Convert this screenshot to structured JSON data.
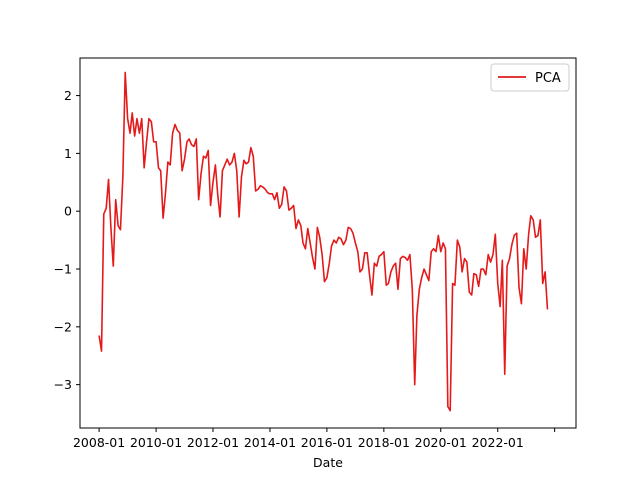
{
  "chart_data": {
    "type": "line",
    "xlabel": "Date",
    "ylabel": "",
    "xlim": [
      "2007-05-01",
      "2024-10-01"
    ],
    "ylim": [
      -3.75,
      2.65
    ],
    "xticks": [
      {
        "date": "2008-01-01",
        "label": "2008-01"
      },
      {
        "date": "2010-01-01",
        "label": "2010-01"
      },
      {
        "date": "2012-01-01",
        "label": "2012-01"
      },
      {
        "date": "2014-01-01",
        "label": "2014-01"
      },
      {
        "date": "2016-01-01",
        "label": "2016-01"
      },
      {
        "date": "2018-01-01",
        "label": "2018-01"
      },
      {
        "date": "2020-01-01",
        "label": "2020-01"
      },
      {
        "date": "2022-01-01",
        "label": "2022-01"
      },
      {
        "date": "2024-01-01",
        "label": ""
      }
    ],
    "yticks": [
      -3,
      -2,
      -1,
      0,
      1,
      2
    ],
    "grid": false,
    "legend": {
      "position": "top-right"
    },
    "colors": {
      "series": "#e41a1a",
      "axes": "#000000"
    },
    "series": [
      {
        "name": "PCA",
        "x": [
          "2008-01-01",
          "2008-02-01",
          "2008-03-01",
          "2008-04-01",
          "2008-05-01",
          "2008-06-01",
          "2008-07-01",
          "2008-08-01",
          "2008-09-01",
          "2008-10-01",
          "2008-11-01",
          "2008-12-01",
          "2009-01-01",
          "2009-02-01",
          "2009-03-01",
          "2009-04-01",
          "2009-05-01",
          "2009-06-01",
          "2009-07-01",
          "2009-08-01",
          "2009-09-01",
          "2009-10-01",
          "2009-11-01",
          "2009-12-01",
          "2010-01-01",
          "2010-02-01",
          "2010-03-01",
          "2010-04-01",
          "2010-05-01",
          "2010-06-01",
          "2010-07-01",
          "2010-08-01",
          "2010-09-01",
          "2010-10-01",
          "2010-11-01",
          "2010-12-01",
          "2011-01-01",
          "2011-02-01",
          "2011-03-01",
          "2011-04-01",
          "2011-05-01",
          "2011-06-01",
          "2011-07-01",
          "2011-08-01",
          "2011-09-01",
          "2011-10-01",
          "2011-11-01",
          "2011-12-01",
          "2012-01-01",
          "2012-02-01",
          "2012-03-01",
          "2012-04-01",
          "2012-05-01",
          "2012-06-01",
          "2012-07-01",
          "2012-08-01",
          "2012-09-01",
          "2012-10-01",
          "2012-11-01",
          "2012-12-01",
          "2013-01-01",
          "2013-02-01",
          "2013-03-01",
          "2013-04-01",
          "2013-05-01",
          "2013-06-01",
          "2013-07-01",
          "2013-08-01",
          "2013-09-01",
          "2013-10-01",
          "2013-11-01",
          "2013-12-01",
          "2014-01-01",
          "2014-02-01",
          "2014-03-01",
          "2014-04-01",
          "2014-05-01",
          "2014-06-01",
          "2014-07-01",
          "2014-08-01",
          "2014-09-01",
          "2014-10-01",
          "2014-11-01",
          "2014-12-01",
          "2015-01-01",
          "2015-02-01",
          "2015-03-01",
          "2015-04-01",
          "2015-05-01",
          "2015-06-01",
          "2015-07-01",
          "2015-08-01",
          "2015-09-01",
          "2015-10-01",
          "2015-11-01",
          "2015-12-01",
          "2016-01-01",
          "2016-02-01",
          "2016-03-01",
          "2016-04-01",
          "2016-05-01",
          "2016-06-01",
          "2016-07-01",
          "2016-08-01",
          "2016-09-01",
          "2016-10-01",
          "2016-11-01",
          "2016-12-01",
          "2017-01-01",
          "2017-02-01",
          "2017-03-01",
          "2017-04-01",
          "2017-05-01",
          "2017-06-01",
          "2017-07-01",
          "2017-08-01",
          "2017-09-01",
          "2017-10-01",
          "2017-11-01",
          "2017-12-01",
          "2018-01-01",
          "2018-02-01",
          "2018-03-01",
          "2018-04-01",
          "2018-05-01",
          "2018-06-01",
          "2018-07-01",
          "2018-08-01",
          "2018-09-01",
          "2018-10-01",
          "2018-11-01",
          "2018-12-01",
          "2019-01-01",
          "2019-02-01",
          "2019-03-01",
          "2019-04-01",
          "2019-05-01",
          "2019-06-01",
          "2019-07-01",
          "2019-08-01",
          "2019-09-01",
          "2019-10-01",
          "2019-11-01",
          "2019-12-01",
          "2020-01-01",
          "2020-02-01",
          "2020-03-01",
          "2020-04-01",
          "2020-05-01",
          "2020-06-01",
          "2020-07-01",
          "2020-08-01",
          "2020-09-01",
          "2020-10-01",
          "2020-11-01",
          "2020-12-01",
          "2021-01-01",
          "2021-02-01",
          "2021-03-01",
          "2021-04-01",
          "2021-05-01",
          "2021-06-01",
          "2021-07-01",
          "2021-08-01",
          "2021-09-01",
          "2021-10-01",
          "2021-11-01",
          "2021-12-01",
          "2022-01-01",
          "2022-02-01",
          "2022-03-01",
          "2022-04-01",
          "2022-05-01",
          "2022-06-01",
          "2022-07-01",
          "2022-08-01",
          "2022-09-01",
          "2022-10-01",
          "2022-11-01",
          "2022-12-01",
          "2023-01-01",
          "2023-02-01",
          "2023-03-01",
          "2023-04-01",
          "2023-05-01",
          "2023-06-01",
          "2023-07-01",
          "2023-08-01",
          "2023-09-01",
          "2023-10-01"
        ],
        "values": [
          -2.15,
          -2.42,
          -0.05,
          0.05,
          0.55,
          -0.3,
          -0.95,
          0.2,
          -0.25,
          -0.32,
          0.6,
          2.4,
          1.6,
          1.35,
          1.7,
          1.3,
          1.6,
          1.35,
          1.6,
          0.75,
          1.2,
          1.6,
          1.55,
          1.2,
          1.2,
          0.75,
          0.7,
          -0.12,
          0.3,
          0.85,
          0.8,
          1.35,
          1.5,
          1.4,
          1.35,
          0.7,
          0.9,
          1.2,
          1.25,
          1.15,
          1.12,
          1.25,
          0.2,
          0.65,
          0.95,
          0.92,
          1.05,
          0.1,
          0.5,
          0.8,
          0.3,
          -0.1,
          0.7,
          0.8,
          0.9,
          0.8,
          0.85,
          1.0,
          0.7,
          -0.1,
          0.6,
          0.88,
          0.82,
          0.85,
          1.1,
          0.95,
          0.35,
          0.38,
          0.44,
          0.42,
          0.38,
          0.32,
          0.3,
          0.3,
          0.2,
          0.32,
          0.05,
          0.12,
          0.42,
          0.35,
          0.02,
          0.05,
          0.1,
          -0.3,
          -0.15,
          -0.25,
          -0.55,
          -0.65,
          -0.3,
          -0.55,
          -0.8,
          -1.0,
          -0.28,
          -0.45,
          -0.75,
          -1.22,
          -1.15,
          -0.9,
          -0.6,
          -0.5,
          -0.55,
          -0.45,
          -0.48,
          -0.58,
          -0.5,
          -0.28,
          -0.3,
          -0.38,
          -0.55,
          -0.7,
          -1.05,
          -1.0,
          -0.72,
          -0.72,
          -1.1,
          -1.45,
          -0.9,
          -0.95,
          -0.78,
          -0.75,
          -0.7,
          -1.28,
          -1.25,
          -1.05,
          -0.95,
          -0.9,
          -1.35,
          -0.82,
          -0.78,
          -0.8,
          -0.85,
          -0.75,
          -1.35,
          -3.0,
          -1.8,
          -1.35,
          -1.15,
          -1.0,
          -1.1,
          -1.2,
          -0.7,
          -0.65,
          -0.7,
          -0.42,
          -0.7,
          -0.55,
          -0.65,
          -3.38,
          -3.45,
          -1.25,
          -1.28,
          -0.5,
          -0.62,
          -1.05,
          -0.82,
          -0.88,
          -1.4,
          -1.45,
          -1.08,
          -1.1,
          -1.3,
          -1.0,
          -1.0,
          -1.1,
          -0.75,
          -0.88,
          -0.75,
          -0.4,
          -1.25,
          -1.65,
          -0.85,
          -2.82,
          -0.95,
          -0.82,
          -0.58,
          -0.42,
          -0.38,
          -1.32,
          -1.6,
          -0.65,
          -1.0,
          -0.4,
          -0.08,
          -0.15,
          -0.45,
          -0.42,
          -0.15,
          -1.25,
          -1.05,
          -1.7
        ]
      }
    ]
  }
}
